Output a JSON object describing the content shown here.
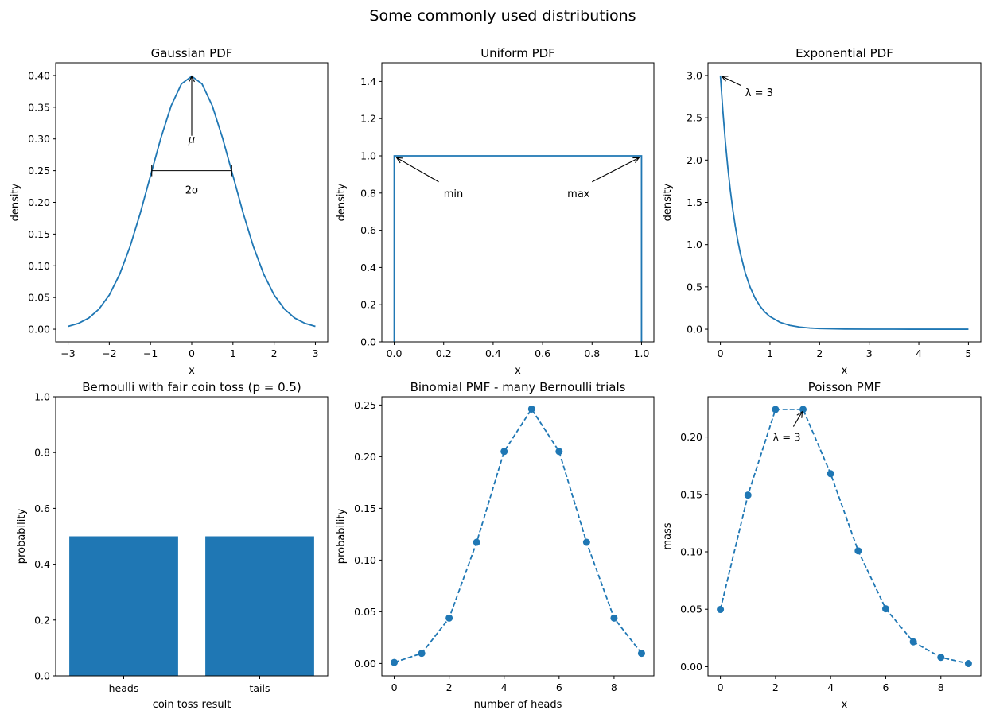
{
  "figure": {
    "title": "Some commonly used distributions",
    "series_color": "#1f77b4"
  },
  "chart_data": [
    {
      "id": "gaussian",
      "type": "line",
      "title": "Gaussian PDF",
      "xlabel": "x",
      "ylabel": "density",
      "xlim": [
        -3.3,
        3.3
      ],
      "ylim": [
        -0.02,
        0.42
      ],
      "xticks": [
        -3,
        -2,
        -1,
        0,
        1,
        2,
        3
      ],
      "xtick_labels": [
        "−3",
        "−2",
        "−1",
        "0",
        "1",
        "2",
        "3"
      ],
      "yticks": [
        0.0,
        0.05,
        0.1,
        0.15,
        0.2,
        0.25,
        0.3,
        0.35,
        0.4
      ],
      "ytick_labels": [
        "0.00",
        "0.05",
        "0.10",
        "0.15",
        "0.20",
        "0.25",
        "0.30",
        "0.35",
        "0.40"
      ],
      "x": [
        -3.0,
        -2.75,
        -2.5,
        -2.25,
        -2.0,
        -1.75,
        -1.5,
        -1.25,
        -1.0,
        -0.75,
        -0.5,
        -0.25,
        0.0,
        0.25,
        0.5,
        0.75,
        1.0,
        1.25,
        1.5,
        1.75,
        2.0,
        2.25,
        2.5,
        2.75,
        3.0
      ],
      "y": [
        0.0044,
        0.0091,
        0.0175,
        0.0317,
        0.054,
        0.0863,
        0.1295,
        0.1826,
        0.242,
        0.3011,
        0.3521,
        0.3867,
        0.3989,
        0.3867,
        0.3521,
        0.3011,
        0.242,
        0.1826,
        0.1295,
        0.0863,
        0.054,
        0.0317,
        0.0175,
        0.0091,
        0.0044
      ],
      "annotations": [
        {
          "text": "μ",
          "x": 0,
          "y": 0.3
        },
        {
          "text": "2σ",
          "x": 0,
          "y": 0.22
        }
      ]
    },
    {
      "id": "uniform",
      "type": "line",
      "title": "Uniform PDF",
      "xlabel": "x",
      "ylabel": "density",
      "xlim": [
        -0.05,
        1.05
      ],
      "ylim": [
        0,
        1.5
      ],
      "xticks": [
        0,
        0.2,
        0.4,
        0.6,
        0.8,
        1.0
      ],
      "xtick_labels": [
        "0.0",
        "0.2",
        "0.4",
        "0.6",
        "0.8",
        "1.0"
      ],
      "yticks": [
        0,
        0.2,
        0.4,
        0.6,
        0.8,
        1.0,
        1.2,
        1.4
      ],
      "ytick_labels": [
        "0.0",
        "0.2",
        "0.4",
        "0.6",
        "0.8",
        "1.0",
        "1.2",
        "1.4"
      ],
      "x": [
        0,
        0,
        1,
        1
      ],
      "y": [
        0,
        1,
        1,
        0
      ],
      "annotations": [
        {
          "text": "min",
          "x": 0.2,
          "y": 0.8
        },
        {
          "text": "max",
          "x": 0.7,
          "y": 0.8
        }
      ]
    },
    {
      "id": "exponential",
      "type": "line",
      "title": "Exponential PDF",
      "xlabel": "x",
      "ylabel": "density",
      "xlim": [
        -0.25,
        5.25
      ],
      "ylim": [
        -0.15,
        3.15
      ],
      "xticks": [
        0,
        1,
        2,
        3,
        4,
        5
      ],
      "xtick_labels": [
        "0",
        "1",
        "2",
        "3",
        "4",
        "5"
      ],
      "yticks": [
        0,
        0.5,
        1.0,
        1.5,
        2.0,
        2.5,
        3.0
      ],
      "ytick_labels": [
        "0.0",
        "0.5",
        "1.0",
        "1.5",
        "2.0",
        "2.5",
        "3.0"
      ],
      "x": [
        0,
        0.05,
        0.1,
        0.15,
        0.2,
        0.25,
        0.3,
        0.35,
        0.4,
        0.5,
        0.6,
        0.7,
        0.8,
        0.9,
        1.0,
        1.2,
        1.4,
        1.6,
        1.8,
        2.0,
        2.5,
        3.0,
        3.5,
        4.0,
        4.5,
        5.0
      ],
      "y": [
        3.0,
        2.582,
        2.222,
        1.913,
        1.646,
        1.417,
        1.22,
        1.05,
        0.904,
        0.669,
        0.496,
        0.367,
        0.272,
        0.201,
        0.149,
        0.082,
        0.045,
        0.025,
        0.014,
        0.0074,
        0.0017,
        0.0004,
        0.0001,
        0.0,
        0.0,
        0.0
      ],
      "annotations": [
        {
          "text": "λ = 3",
          "x": 0.5,
          "y": 2.8
        }
      ]
    },
    {
      "id": "bernoulli",
      "type": "bar",
      "title": "Bernoulli with fair coin toss (p = 0.5)",
      "xlabel": "coin toss result",
      "ylabel": "probability",
      "ylim": [
        0,
        1.0
      ],
      "yticks": [
        0,
        0.2,
        0.4,
        0.6,
        0.8,
        1.0
      ],
      "ytick_labels": [
        "0.0",
        "0.2",
        "0.4",
        "0.6",
        "0.8",
        "1.0"
      ],
      "categories": [
        "heads",
        "tails"
      ],
      "values": [
        0.5,
        0.5
      ]
    },
    {
      "id": "binomial",
      "type": "line",
      "title": "Binomial PMF - many Bernoulli trials",
      "xlabel": "number of heads",
      "ylabel": "probability",
      "xlim": [
        -0.45,
        9.45
      ],
      "ylim": [
        -0.012,
        0.258
      ],
      "xticks": [
        0,
        2,
        4,
        6,
        8
      ],
      "xtick_labels": [
        "0",
        "2",
        "4",
        "6",
        "8"
      ],
      "yticks": [
        0,
        0.05,
        0.1,
        0.15,
        0.2,
        0.25
      ],
      "ytick_labels": [
        "0.00",
        "0.05",
        "0.10",
        "0.15",
        "0.20",
        "0.25"
      ],
      "x": [
        0,
        1,
        2,
        3,
        4,
        5,
        6,
        7,
        8,
        9
      ],
      "y": [
        0.001,
        0.0098,
        0.0439,
        0.1172,
        0.2051,
        0.2461,
        0.2051,
        0.1172,
        0.0439,
        0.0098
      ]
    },
    {
      "id": "poisson",
      "type": "line",
      "title": "Poisson PMF",
      "xlabel": "x",
      "ylabel": "mass",
      "xlim": [
        -0.45,
        9.45
      ],
      "ylim": [
        -0.008,
        0.235
      ],
      "xticks": [
        0,
        2,
        4,
        6,
        8
      ],
      "xtick_labels": [
        "0",
        "2",
        "4",
        "6",
        "8"
      ],
      "yticks": [
        0,
        0.05,
        0.1,
        0.15,
        0.2
      ],
      "ytick_labels": [
        "0.00",
        "0.05",
        "0.10",
        "0.15",
        "0.20"
      ],
      "x": [
        0,
        1,
        2,
        3,
        4,
        5,
        6,
        7,
        8,
        9
      ],
      "y": [
        0.0498,
        0.1494,
        0.224,
        0.224,
        0.168,
        0.1008,
        0.0504,
        0.0216,
        0.0081,
        0.0027
      ],
      "annotations": [
        {
          "text": "λ = 3",
          "x": 1.9,
          "y": 0.2
        }
      ]
    }
  ]
}
